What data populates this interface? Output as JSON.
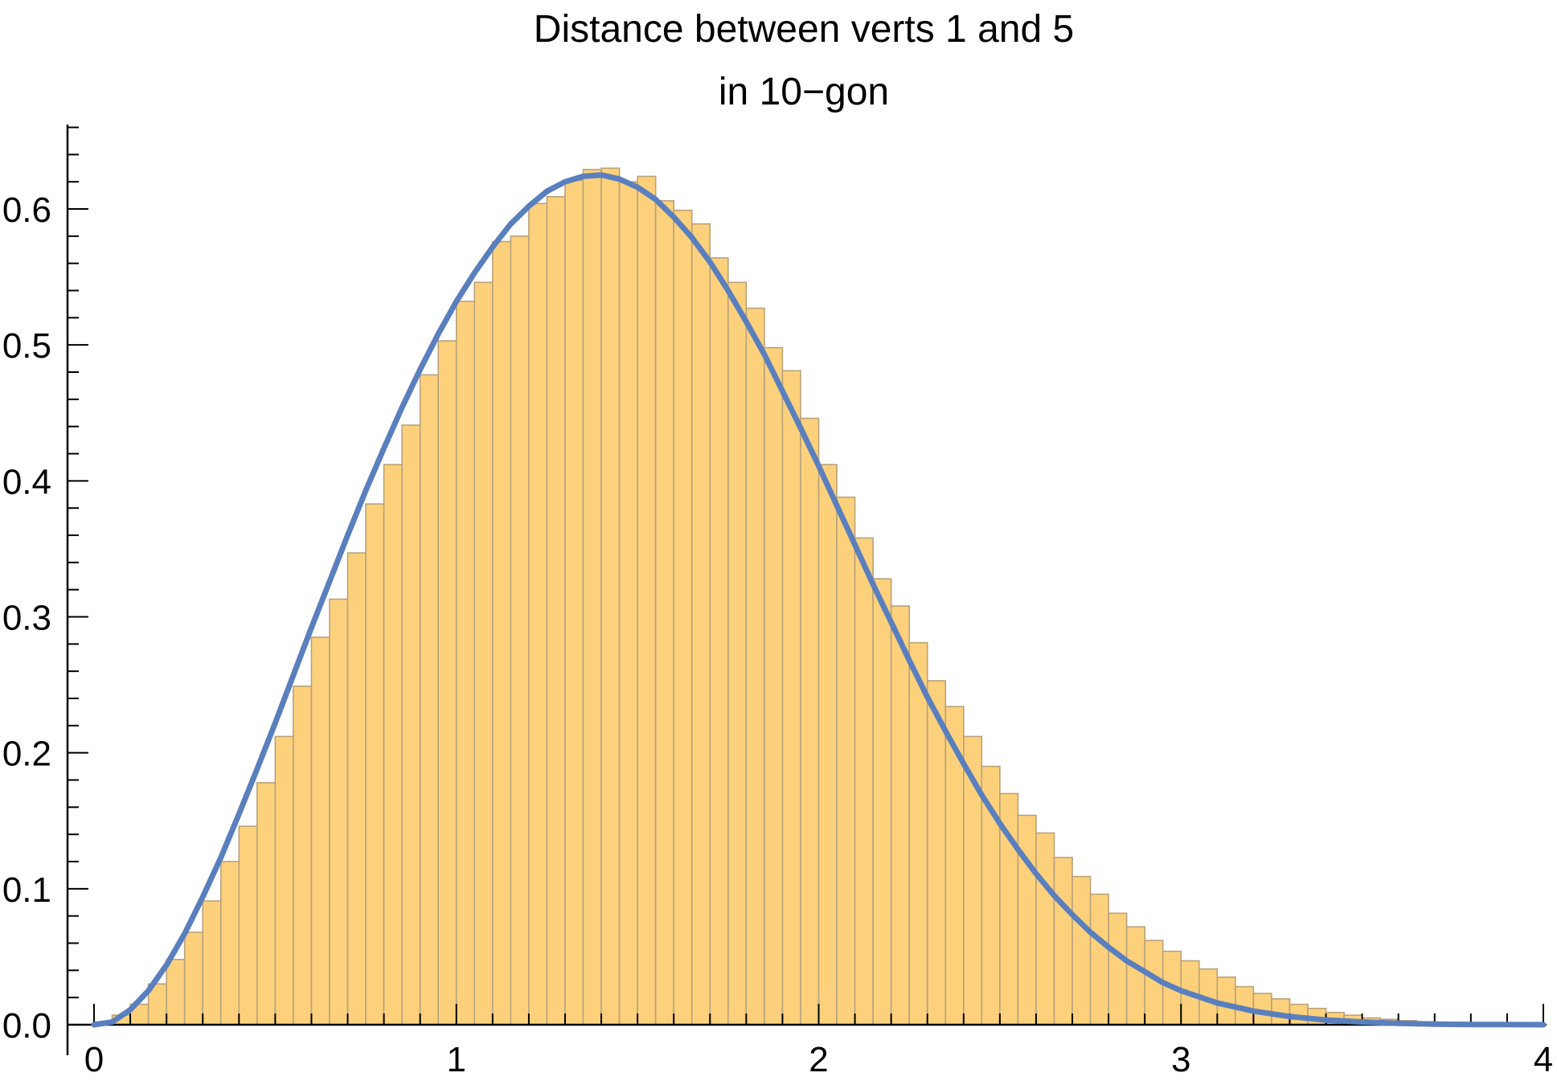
{
  "chart_data": {
    "type": "bar",
    "title_lines": [
      "Distance between verts 1 and 5",
      "in 10−gon"
    ],
    "xlabel": "",
    "ylabel": "",
    "xlim": [
      0,
      4
    ],
    "ylim": [
      0,
      0.66
    ],
    "x_ticks": [
      "0",
      "1",
      "2",
      "3",
      "4"
    ],
    "y_ticks": [
      "0.0",
      "0.1",
      "0.2",
      "0.3",
      "0.4",
      "0.5",
      "0.6"
    ],
    "bin_width": 0.05,
    "bin_start": 0,
    "bar_fill": "#fdd17c",
    "curve_color": "#5a7fbe",
    "histogram_values": [
      0.002,
      0.007,
      0.015,
      0.03,
      0.048,
      0.068,
      0.091,
      0.12,
      0.146,
      0.178,
      0.212,
      0.249,
      0.285,
      0.313,
      0.347,
      0.383,
      0.412,
      0.441,
      0.478,
      0.503,
      0.532,
      0.546,
      0.576,
      0.58,
      0.604,
      0.609,
      0.621,
      0.629,
      0.63,
      0.62,
      0.624,
      0.606,
      0.599,
      0.589,
      0.564,
      0.546,
      0.527,
      0.498,
      0.481,
      0.446,
      0.412,
      0.388,
      0.358,
      0.328,
      0.308,
      0.281,
      0.253,
      0.234,
      0.212,
      0.19,
      0.17,
      0.154,
      0.141,
      0.123,
      0.109,
      0.096,
      0.082,
      0.072,
      0.062,
      0.054,
      0.047,
      0.041,
      0.035,
      0.028,
      0.023,
      0.019,
      0.015,
      0.012,
      0.009,
      0.007,
      0.005,
      0.004,
      0.003,
      0.002,
      0.0015,
      0.001,
      0.0008,
      0.0005,
      0.0003,
      0.0001
    ],
    "density_curve": {
      "x": [
        0,
        0.05,
        0.1,
        0.15,
        0.2,
        0.25,
        0.3,
        0.35,
        0.4,
        0.45,
        0.5,
        0.55,
        0.6,
        0.65,
        0.7,
        0.75,
        0.8,
        0.85,
        0.9,
        0.95,
        1.0,
        1.05,
        1.1,
        1.15,
        1.2,
        1.25,
        1.3,
        1.35,
        1.4,
        1.45,
        1.5,
        1.55,
        1.6,
        1.65,
        1.7,
        1.75,
        1.8,
        1.85,
        1.9,
        1.95,
        2.0,
        2.05,
        2.1,
        2.15,
        2.2,
        2.25,
        2.3,
        2.35,
        2.4,
        2.45,
        2.5,
        2.55,
        2.6,
        2.65,
        2.7,
        2.75,
        2.8,
        2.85,
        2.9,
        2.95,
        3.0,
        3.1,
        3.2,
        3.3,
        3.4,
        3.5,
        3.6,
        3.7,
        3.8,
        3.9,
        4.0
      ],
      "y": [
        0.0,
        0.002,
        0.011,
        0.025,
        0.044,
        0.067,
        0.094,
        0.123,
        0.155,
        0.188,
        0.222,
        0.257,
        0.292,
        0.326,
        0.36,
        0.393,
        0.424,
        0.454,
        0.482,
        0.508,
        0.532,
        0.553,
        0.572,
        0.589,
        0.602,
        0.613,
        0.62,
        0.624,
        0.625,
        0.622,
        0.616,
        0.607,
        0.594,
        0.579,
        0.561,
        0.54,
        0.517,
        0.493,
        0.466,
        0.439,
        0.411,
        0.382,
        0.353,
        0.324,
        0.296,
        0.268,
        0.241,
        0.216,
        0.192,
        0.169,
        0.148,
        0.129,
        0.111,
        0.095,
        0.081,
        0.068,
        0.057,
        0.047,
        0.039,
        0.031,
        0.025,
        0.016,
        0.01,
        0.006,
        0.0035,
        0.002,
        0.001,
        0.0005,
        0.0002,
        0.0001,
        0.0
      ]
    }
  }
}
